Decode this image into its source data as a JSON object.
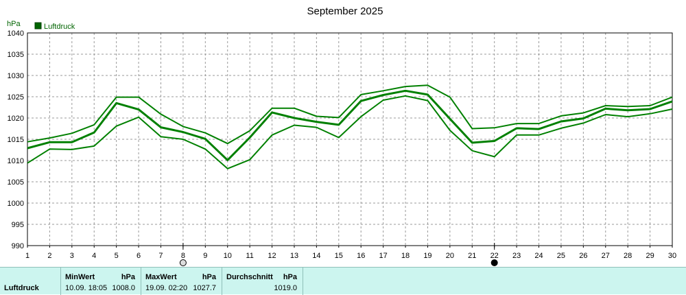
{
  "chart_data": {
    "type": "line",
    "title": "September 2025",
    "ylabel": "hPa",
    "xlabel": "",
    "legend": [
      "Luftdruck"
    ],
    "ylim": [
      990,
      1040
    ],
    "yticks": [
      990,
      995,
      1000,
      1005,
      1010,
      1015,
      1020,
      1025,
      1030,
      1035,
      1040
    ],
    "xlim": [
      1,
      30
    ],
    "x": [
      1,
      2,
      3,
      4,
      5,
      6,
      7,
      8,
      9,
      10,
      11,
      12,
      13,
      14,
      15,
      16,
      17,
      18,
      19,
      20,
      21,
      22,
      23,
      24,
      25,
      26,
      27,
      28,
      29,
      30
    ],
    "grid": true,
    "legend_position": "top-left",
    "markers": {
      "x8": "moon-open",
      "x22": "moon-filled"
    },
    "series": [
      {
        "name": "Luftdruck",
        "role": "max",
        "color": "#008000",
        "values": [
          1014.4,
          1015.3,
          1016.4,
          1018.4,
          1024.9,
          1024.9,
          1020.9,
          1018.0,
          1016.5,
          1014.0,
          1017.0,
          1022.3,
          1022.3,
          1020.4,
          1020.1,
          1025.5,
          1026.4,
          1027.4,
          1027.7,
          1024.9,
          1017.5,
          1017.7,
          1018.7,
          1018.7,
          1020.5,
          1021.2,
          1022.9,
          1022.7,
          1022.9,
          1024.9
        ]
      },
      {
        "name": "Luftdruck",
        "role": "avg",
        "color": "#008000",
        "values": [
          1012.9,
          1014.3,
          1014.3,
          1016.6,
          1023.5,
          1022.0,
          1017.8,
          1016.7,
          1015.1,
          1010.1,
          1015.4,
          1021.3,
          1020.0,
          1019.1,
          1018.4,
          1024.0,
          1025.4,
          1026.4,
          1025.5,
          1019.8,
          1014.2,
          1014.6,
          1017.6,
          1017.4,
          1019.2,
          1019.9,
          1022.2,
          1021.8,
          1022.1,
          1023.9
        ]
      },
      {
        "name": "Luftdruck",
        "role": "min",
        "color": "#008000",
        "values": [
          1009.4,
          1012.7,
          1012.6,
          1013.4,
          1018.1,
          1020.2,
          1015.6,
          1015.0,
          1012.7,
          1008.1,
          1010.2,
          1016.0,
          1018.3,
          1017.8,
          1015.4,
          1020.3,
          1024.2,
          1025.2,
          1024.1,
          1017.1,
          1012.3,
          1010.9,
          1016.0,
          1016.0,
          1017.6,
          1018.8,
          1020.8,
          1020.3,
          1021.0,
          1022.1
        ]
      }
    ]
  },
  "stats": {
    "series_name": "Luftdruck",
    "min": {
      "header": "MinWert",
      "unit": "hPa",
      "time": "10.09.  18:05",
      "value": "1008.0"
    },
    "max": {
      "header": "MaxWert",
      "unit": "hPa",
      "time": "19.09.  02:20",
      "value": "1027.7"
    },
    "avg": {
      "header": "Durchschnitt",
      "unit": "hPa",
      "value": "1019.0"
    }
  }
}
